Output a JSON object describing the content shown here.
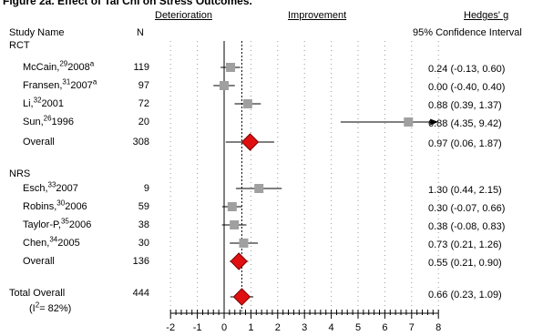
{
  "header": {
    "title": "Figure 2a. Effect of Tai Chi on Stress Outcomes.",
    "deterioration": "Deterioration",
    "improvement": "Improvement",
    "hedges": "Hedges' g",
    "study_name": "Study Name",
    "n": "N",
    "ci": "95% Confidence Interval"
  },
  "groups": {
    "rct": "RCT",
    "nrs": "NRS"
  },
  "total": {
    "label": "Total Overall",
    "n": "444",
    "heterogeneity_prefix": "(I",
    "heterogeneity_sup": "2",
    "heterogeneity_suffix": "= 82%)",
    "ci_text": "0.66 (0.23, 1.09)"
  },
  "rows": [
    {
      "author": "McCain,",
      "ref": "29",
      "year": "2008",
      "mark": "a",
      "n": "119",
      "ci_text": "0.24 (-0.13, 0.60)"
    },
    {
      "author": "Fransen,",
      "ref": "31",
      "year": "2007",
      "mark": "a",
      "n": "97",
      "ci_text": "0.00 (-0.40, 0.40)"
    },
    {
      "author": "Li,",
      "ref": "32",
      "year": "2001",
      "mark": "",
      "n": "72",
      "ci_text": "0.88 (0.39, 1.37)"
    },
    {
      "author": "Sun,",
      "ref": "26",
      "year": "1996",
      "mark": "",
      "n": "20",
      "ci_text": "6.88 (4.35, 9.42)"
    },
    {
      "author": "Overall",
      "ref": "",
      "year": "",
      "mark": "",
      "n": "308",
      "ci_text": "0.97 (0.06, 1.87)"
    },
    {
      "author": "Esch,",
      "ref": "33",
      "year": "2007",
      "mark": "",
      "n": "9",
      "ci_text": "1.30 (0.44, 2.15)"
    },
    {
      "author": "Robins,",
      "ref": "30",
      "year": "2006",
      "mark": "",
      "n": "59",
      "ci_text": "0.30 (-0.07, 0.66)"
    },
    {
      "author": "Taylor-P,",
      "ref": "35",
      "year": "2006",
      "mark": "",
      "n": "38",
      "ci_text": "0.38 (-0.08, 0.83)"
    },
    {
      "author": "Chen,",
      "ref": "34",
      "year": "2005",
      "mark": "",
      "n": "30",
      "ci_text": "0.73 (0.21, 1.26)"
    },
    {
      "author": "Overall",
      "ref": "",
      "year": "",
      "mark": "",
      "n": "136",
      "ci_text": "0.55 (0.21, 0.90)"
    }
  ],
  "chart_data": {
    "type": "forest",
    "xlim": [
      -2,
      8
    ],
    "ticks": [
      -2,
      -1,
      0,
      1,
      2,
      3,
      4,
      5,
      6,
      7,
      8
    ],
    "null_line": 0,
    "pooled_line": 0.66,
    "colors": {
      "study": "#a0a0a0",
      "diamond": "#e01010",
      "line": "#000000"
    },
    "studies": [
      {
        "label": "McCain 2008",
        "g": 0.24,
        "lo": -0.13,
        "hi": 0.6,
        "kind": "study"
      },
      {
        "label": "Fransen 2007",
        "g": 0.0,
        "lo": -0.4,
        "hi": 0.4,
        "kind": "study"
      },
      {
        "label": "Li 2001",
        "g": 0.88,
        "lo": 0.39,
        "hi": 1.37,
        "kind": "study"
      },
      {
        "label": "Sun 1996",
        "g": 6.88,
        "lo": 4.35,
        "hi": 9.42,
        "kind": "study",
        "arrow": true
      },
      {
        "label": "RCT Overall",
        "g": 0.97,
        "lo": 0.06,
        "hi": 1.87,
        "kind": "pooled"
      },
      {
        "label": "Esch 2007",
        "g": 1.3,
        "lo": 0.44,
        "hi": 2.15,
        "kind": "study"
      },
      {
        "label": "Robins 2006",
        "g": 0.3,
        "lo": -0.07,
        "hi": 0.66,
        "kind": "study"
      },
      {
        "label": "Taylor-P 2006",
        "g": 0.38,
        "lo": -0.08,
        "hi": 0.83,
        "kind": "study"
      },
      {
        "label": "Chen 2005",
        "g": 0.73,
        "lo": 0.21,
        "hi": 1.26,
        "kind": "study"
      },
      {
        "label": "NRS Overall",
        "g": 0.55,
        "lo": 0.21,
        "hi": 0.9,
        "kind": "pooled"
      },
      {
        "label": "Total Overall",
        "g": 0.66,
        "lo": 0.23,
        "hi": 1.09,
        "kind": "pooled"
      }
    ]
  }
}
